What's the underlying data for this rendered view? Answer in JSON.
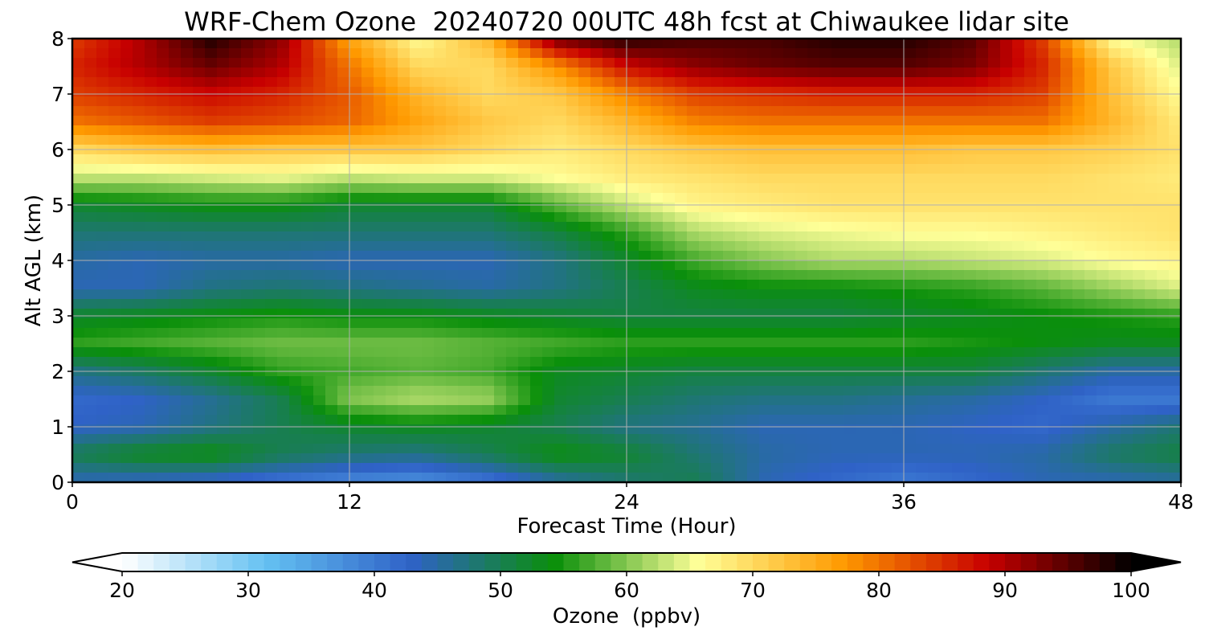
{
  "chart_data": {
    "type": "heatmap",
    "title": "WRF-Chem Ozone  20240720 00UTC 48h fcst at Chiwaukee lidar site",
    "xlabel": "Forecast Time (Hour)",
    "ylabel": "Alt AGL (km)",
    "xlim": [
      0,
      48
    ],
    "ylim": [
      0,
      8
    ],
    "x_ticks": [
      "0",
      "12",
      "24",
      "36",
      "48"
    ],
    "y_ticks": [
      "0",
      "1",
      "2",
      "3",
      "4",
      "5",
      "6",
      "7",
      "8"
    ],
    "grid": true,
    "x": [
      0,
      3,
      6,
      9,
      12,
      15,
      18,
      21,
      24,
      27,
      30,
      33,
      36,
      39,
      42,
      45,
      48
    ],
    "y": [
      0,
      0.5,
      1,
      1.5,
      2,
      2.5,
      3,
      3.5,
      4,
      4.5,
      5,
      5.5,
      6,
      6.5,
      7,
      7.5,
      8
    ],
    "z_units": "ppbv",
    "z": [
      [
        44,
        43,
        42,
        40,
        38,
        37,
        40,
        45,
        48,
        50,
        44,
        42,
        40,
        42,
        44,
        44,
        45
      ],
      [
        50,
        53,
        54,
        50,
        48,
        47,
        50,
        54,
        52,
        48,
        45,
        44,
        44,
        44,
        45,
        49,
        51
      ],
      [
        43,
        44,
        47,
        50,
        52,
        53,
        52,
        50,
        47,
        46,
        44,
        44,
        44,
        43,
        42,
        45,
        48
      ],
      [
        42,
        43,
        46,
        50,
        60,
        62,
        61,
        52,
        50,
        48,
        47,
        47,
        46,
        45,
        43,
        40,
        40
      ],
      [
        47,
        49,
        52,
        56,
        57,
        58,
        57,
        53,
        52,
        51,
        51,
        51,
        51,
        51,
        48,
        45,
        45
      ],
      [
        56,
        57,
        58,
        59,
        59,
        59,
        58,
        57,
        56,
        56,
        56,
        56,
        56,
        55,
        54,
        53,
        53
      ],
      [
        52,
        53,
        54,
        55,
        54,
        54,
        53,
        52,
        51,
        51,
        51,
        51,
        52,
        53,
        54,
        55,
        56
      ],
      [
        44,
        44,
        47,
        48,
        47,
        46,
        45,
        47,
        50,
        53,
        54,
        54,
        55,
        56,
        58,
        61,
        64
      ],
      [
        45,
        44,
        45,
        45,
        44,
        44,
        44,
        47,
        52,
        57,
        60,
        62,
        62,
        63,
        64,
        66,
        67
      ],
      [
        48,
        48,
        48,
        48,
        48,
        48,
        48,
        51,
        56,
        62,
        64,
        65,
        66,
        66,
        67,
        68,
        69
      ],
      [
        52,
        53,
        54,
        54,
        52,
        52,
        52,
        58,
        63,
        67,
        68,
        69,
        69,
        69,
        69,
        69,
        69
      ],
      [
        63,
        63,
        64,
        65,
        63,
        64,
        64,
        66,
        68,
        69,
        70,
        70,
        70,
        70,
        70,
        69,
        68
      ],
      [
        70,
        72,
        73,
        72,
        72,
        72,
        70,
        68,
        70,
        72,
        73,
        73,
        73,
        72,
        72,
        71,
        69
      ],
      [
        80,
        82,
        84,
        83,
        81,
        76,
        72,
        70,
        74,
        79,
        80,
        80,
        80,
        80,
        80,
        74,
        68
      ],
      [
        84,
        86,
        88,
        86,
        82,
        74,
        70,
        72,
        79,
        84,
        85,
        86,
        86,
        86,
        84,
        73,
        66
      ],
      [
        86,
        90,
        94,
        90,
        80,
        70,
        70,
        78,
        88,
        92,
        94,
        95,
        95,
        93,
        86,
        72,
        64
      ],
      [
        84,
        90,
        98,
        92,
        76,
        66,
        74,
        94,
        98,
        96,
        96,
        98,
        98,
        95,
        84,
        66,
        62
      ]
    ],
    "colorbar": {
      "label": "Ozone  (ppbv)",
      "range": [
        20,
        100
      ],
      "ticks": [
        "20",
        "30",
        "40",
        "50",
        "60",
        "70",
        "80",
        "90",
        "100"
      ],
      "extend": "both",
      "colors": [
        "#ffffff",
        "#64c1f2",
        "#2f62c7",
        "#0a8f0a",
        "#ffff98",
        "#ff9a00",
        "#c80000",
        "#000000"
      ]
    }
  }
}
